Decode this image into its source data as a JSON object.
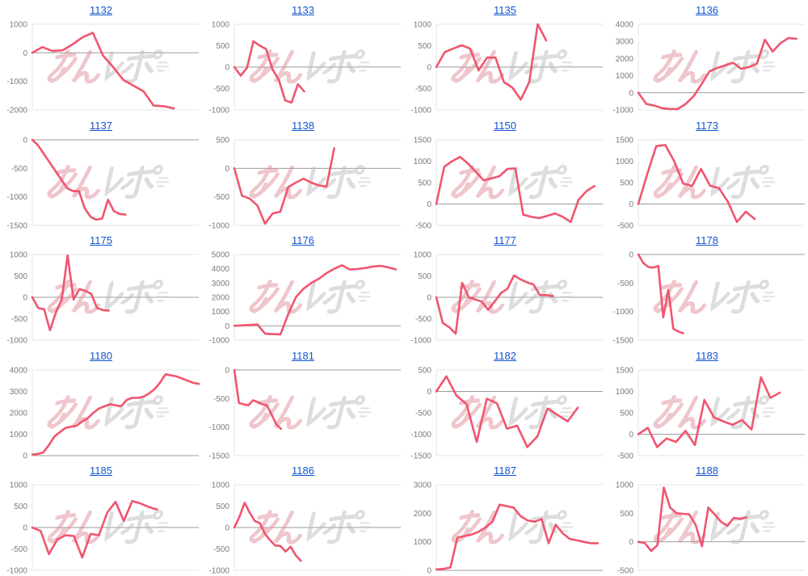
{
  "page": {
    "background": "#ffffff"
  },
  "styles": {
    "line_color": "#f0556f",
    "title_color": "#1155cc",
    "tick_label_color": "#7b7b7b",
    "grid_light_color": "#e4e4e4",
    "zero_line_color": "#9b9b9b",
    "watermark_pink": "#df8f9b",
    "watermark_gray": "#bdbdbd"
  },
  "watermark": {
    "text": "みんレポ"
  },
  "chart_data": [
    {
      "type": "line",
      "title": "1132",
      "yticks": [
        1000,
        0,
        -1000,
        -2000
      ],
      "span": 0.85,
      "values": [
        0,
        200,
        60,
        90,
        300,
        550,
        700,
        -100,
        -500,
        -950,
        -1150,
        -1350,
        -1850,
        -1870,
        -1950
      ]
    },
    {
      "type": "line",
      "title": "1133",
      "yticks": [
        1000,
        500,
        0,
        -500,
        -1000
      ],
      "span": 0.42,
      "values": [
        0,
        -200,
        -20,
        600,
        500,
        420,
        -50,
        -300,
        -780,
        -830,
        -400,
        -570
      ]
    },
    {
      "type": "line",
      "title": "1135",
      "yticks": [
        1000,
        500,
        0,
        -500,
        -1000
      ],
      "span": 0.66,
      "values": [
        0,
        350,
        430,
        510,
        430,
        -80,
        220,
        220,
        -350,
        -480,
        -760,
        -350,
        1000,
        620
      ]
    },
    {
      "type": "line",
      "title": "1136",
      "yticks": [
        4000,
        3000,
        2000,
        1000,
        0,
        -1000
      ],
      "span": 0.95,
      "values": [
        0,
        -650,
        -750,
        -900,
        -950,
        -950,
        -650,
        -200,
        500,
        1250,
        1450,
        1600,
        1750,
        1400,
        1500,
        1700,
        3100,
        2400,
        2900,
        3200,
        3150
      ]
    },
    {
      "type": "line",
      "title": "1137",
      "yticks": [
        0,
        -500,
        -1000,
        -1500
      ],
      "span": 0.56,
      "values": [
        0,
        -100,
        -250,
        -400,
        -550,
        -700,
        -850,
        -900,
        -900,
        -1200,
        -1350,
        -1400,
        -1380,
        -1050,
        -1250,
        -1300,
        -1310
      ]
    },
    {
      "type": "line",
      "title": "1138",
      "yticks": [
        500,
        0,
        -500,
        -1000
      ],
      "span": 0.6,
      "values": [
        0,
        -480,
        -530,
        -650,
        -970,
        -790,
        -760,
        -330,
        -250,
        -180,
        -250,
        -300,
        -320,
        350
      ]
    },
    {
      "type": "line",
      "title": "1150",
      "yticks": [
        1500,
        1000,
        500,
        0,
        -500
      ],
      "span": 0.95,
      "values": [
        0,
        870,
        1000,
        1100,
        950,
        750,
        550,
        600,
        650,
        820,
        830,
        -250,
        -300,
        -330,
        -280,
        -220,
        -300,
        -420,
        100,
        300,
        420
      ]
    },
    {
      "type": "line",
      "title": "1173",
      "yticks": [
        1500,
        1000,
        500,
        0,
        -500
      ],
      "span": 0.7,
      "values": [
        0,
        700,
        1350,
        1380,
        1000,
        480,
        420,
        820,
        430,
        370,
        50,
        -420,
        -180,
        -350
      ]
    },
    {
      "type": "line",
      "title": "1175",
      "yticks": [
        1000,
        500,
        0,
        -500,
        -1000
      ],
      "span": 0.46,
      "values": [
        0,
        -250,
        -280,
        -770,
        -350,
        -50,
        980,
        -50,
        190,
        150,
        80,
        -250,
        -300,
        -310
      ]
    },
    {
      "type": "line",
      "title": "1176",
      "yticks": [
        5000,
        4000,
        3000,
        2000,
        1000,
        0,
        -1000
      ],
      "span": 0.97,
      "values": [
        0,
        30,
        60,
        100,
        -550,
        -580,
        -600,
        800,
        2000,
        2600,
        3000,
        3300,
        3700,
        4000,
        4250,
        3950,
        3980,
        4050,
        4150,
        4200,
        4100,
        3950
      ]
    },
    {
      "type": "line",
      "title": "1177",
      "yticks": [
        1000,
        500,
        0,
        -500,
        -1000
      ],
      "span": 0.7,
      "values": [
        0,
        -600,
        -700,
        -850,
        340,
        0,
        -50,
        -100,
        -290,
        -100,
        100,
        200,
        510,
        420,
        350,
        300,
        50,
        50,
        30
      ]
    },
    {
      "type": "line",
      "title": "1178",
      "yticks": [
        0,
        -500,
        -1000,
        -1500
      ],
      "span": 0.27,
      "values": [
        0,
        -150,
        -220,
        -230,
        -200,
        -1100,
        -620,
        -1300,
        -1350,
        -1380
      ]
    },
    {
      "type": "line",
      "title": "1180",
      "yticks": [
        4000,
        3000,
        2000,
        1000,
        0
      ],
      "span": 1.0,
      "values": [
        50,
        80,
        150,
        500,
        900,
        1100,
        1300,
        1350,
        1400,
        1600,
        1750,
        2000,
        2200,
        2300,
        2400,
        2350,
        2300,
        2600,
        2700,
        2700,
        2750,
        2900,
        3100,
        3400,
        3800,
        3750,
        3700,
        3600,
        3500,
        3400,
        3350
      ]
    },
    {
      "type": "line",
      "title": "1181",
      "yticks": [
        0,
        -500,
        -1000,
        -1500
      ],
      "span": 0.28,
      "values": [
        0,
        -580,
        -600,
        -620,
        -530,
        -560,
        -600,
        -620,
        -780,
        -950,
        -1030
      ]
    },
    {
      "type": "line",
      "title": "1182",
      "yticks": [
        500,
        0,
        -500,
        -1000,
        -1500
      ],
      "span": 0.85,
      "values": [
        0,
        350,
        -100,
        -300,
        -1180,
        -170,
        -280,
        -870,
        -800,
        -1300,
        -1050,
        -400,
        -550,
        -700,
        -380
      ]
    },
    {
      "type": "line",
      "title": "1183",
      "yticks": [
        1500,
        1000,
        500,
        0,
        -500
      ],
      "span": 0.85,
      "values": [
        0,
        150,
        -300,
        -100,
        -180,
        80,
        -250,
        800,
        400,
        300,
        220,
        330,
        110,
        1330,
        850,
        970
      ]
    },
    {
      "type": "line",
      "title": "1185",
      "yticks": [
        1000,
        500,
        0,
        -500,
        -1000
      ],
      "span": 0.75,
      "values": [
        0,
        -80,
        -620,
        -280,
        -180,
        -200,
        -700,
        -150,
        -180,
        350,
        600,
        150,
        620,
        560,
        480,
        420
      ]
    },
    {
      "type": "line",
      "title": "1186",
      "yticks": [
        1000,
        500,
        0,
        -500,
        -1000
      ],
      "span": 0.4,
      "values": [
        0,
        250,
        580,
        350,
        150,
        100,
        -150,
        -300,
        -420,
        -430,
        -560,
        -450,
        -650,
        -780
      ]
    },
    {
      "type": "line",
      "title": "1187",
      "yticks": [
        3000,
        2000,
        1000,
        0
      ],
      "span": 0.97,
      "values": [
        30,
        50,
        100,
        1150,
        1200,
        1250,
        1350,
        1500,
        1700,
        2300,
        2250,
        2200,
        1900,
        1750,
        1700,
        1800,
        950,
        1600,
        1300,
        1100,
        1050,
        1000,
        950,
        950
      ]
    },
    {
      "type": "line",
      "title": "1188",
      "yticks": [
        1000,
        500,
        0,
        -500
      ],
      "span": 0.65,
      "values": [
        0,
        -20,
        -160,
        -60,
        950,
        600,
        500,
        490,
        480,
        300,
        -80,
        600,
        480,
        350,
        280,
        420,
        400,
        430
      ]
    }
  ]
}
